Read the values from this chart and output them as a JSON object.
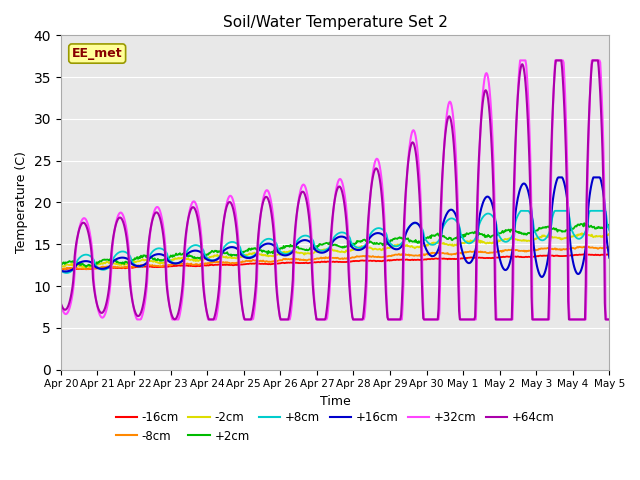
{
  "title": "Soil/Water Temperature Set 2",
  "xlabel": "Time",
  "ylabel": "Temperature (C)",
  "ylim": [
    0,
    40
  ],
  "yticks": [
    0,
    5,
    10,
    15,
    20,
    25,
    30,
    35,
    40
  ],
  "background_color": "#e8e8e8",
  "legend_entries": [
    "-16cm",
    "-8cm",
    "-2cm",
    "+2cm",
    "+8cm",
    "+16cm",
    "+32cm",
    "+64cm"
  ],
  "line_colors": [
    "#ff0000",
    "#ff8800",
    "#dddd00",
    "#00bb00",
    "#00cccc",
    "#0000cc",
    "#ff44ff",
    "#aa00aa"
  ],
  "annotation_text": "EE_met",
  "annotation_box_color": "#ffff99",
  "annotation_text_color": "#880000",
  "annotation_border_color": "#999900"
}
